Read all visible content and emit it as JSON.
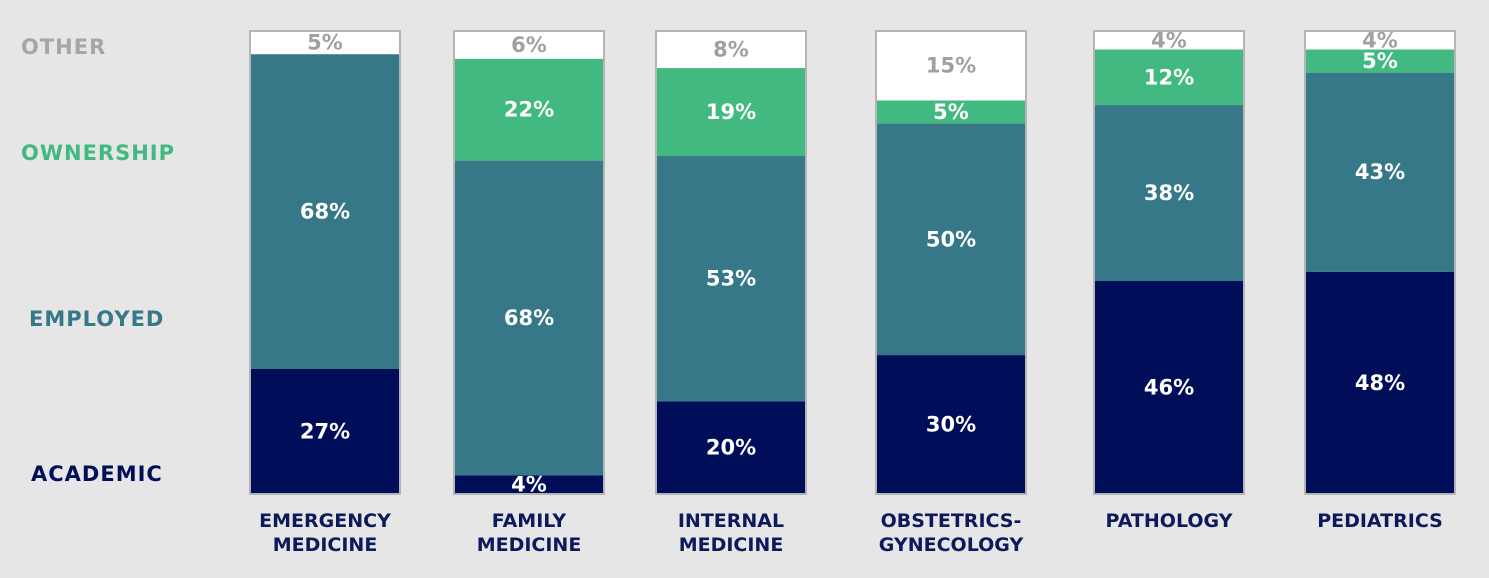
{
  "chart_data": {
    "type": "bar",
    "stacked": true,
    "orientation": "vertical",
    "categories": [
      [
        "EMERGENCY",
        "MEDICINE"
      ],
      [
        "FAMILY",
        "MEDICINE"
      ],
      [
        "INTERNAL",
        "MEDICINE"
      ],
      [
        "OBSTETRICS-",
        "GYNECOLOGY"
      ],
      [
        "PATHOLOGY"
      ],
      [
        "PEDIATRICS"
      ]
    ],
    "series": [
      {
        "name": "ACADEMIC",
        "color": "#000d59",
        "label_color": "#ffffff",
        "values": [
          27,
          4,
          20,
          30,
          46,
          48
        ],
        "labels": [
          "27%",
          "4%",
          "20%",
          "30%",
          "46%",
          "48%"
        ]
      },
      {
        "name": "EMPLOYED",
        "color": "#367887",
        "label_color": "#ffffff",
        "values": [
          68,
          68,
          53,
          50,
          38,
          43
        ],
        "labels": [
          "68%",
          "68%",
          "53%",
          "50%",
          "38%",
          "43%"
        ]
      },
      {
        "name": "OWNERSHIP",
        "color": "#41b980",
        "label_color": "#ffffff",
        "values": [
          0,
          22,
          19,
          5,
          12,
          5
        ],
        "labels": [
          "",
          "22%",
          "19%",
          "5%",
          "12%",
          "5%"
        ]
      },
      {
        "name": "OTHER",
        "color": "#ffffff",
        "label_color": "#a0a0a0",
        "values": [
          5,
          6,
          8,
          15,
          4,
          4
        ],
        "labels": [
          "5%",
          "6%",
          "8%",
          "15%",
          "4%",
          "4%"
        ]
      }
    ],
    "legend_colors": [
      "#000d59",
      "#367887",
      "#41b980",
      "#a6a6a6"
    ],
    "category_label_color": "#0c1a5c",
    "ylim": [
      0,
      100
    ],
    "grid": false,
    "legend_position": "left"
  }
}
